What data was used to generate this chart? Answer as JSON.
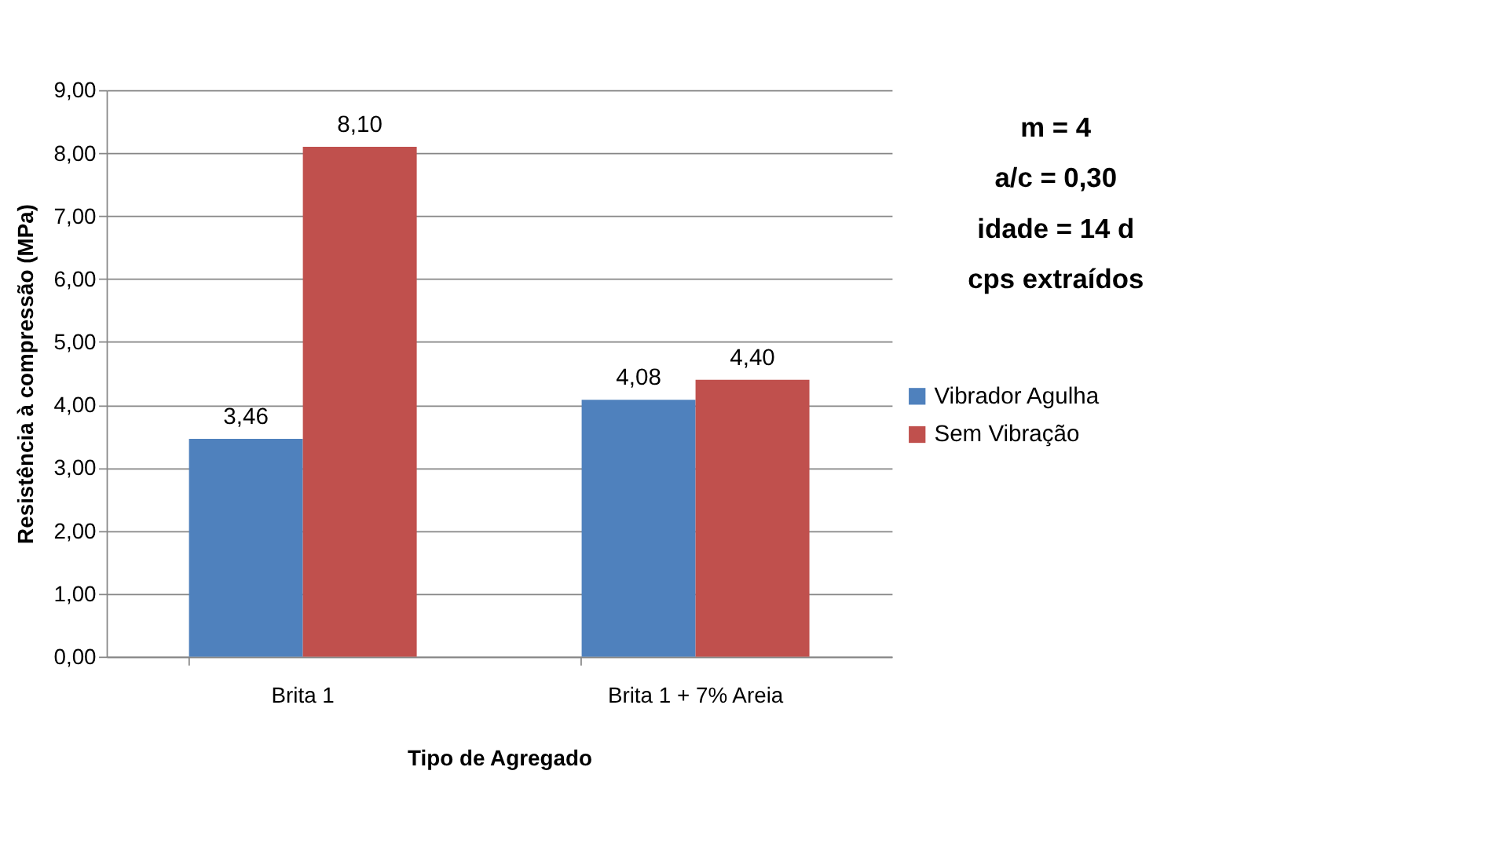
{
  "chart_data": {
    "type": "bar",
    "xlabel": "Tipo de Agregado",
    "ylabel": "Resistência à compressão (MPa)",
    "categories": [
      "Brita 1",
      "Brita 1 + 7% Areia"
    ],
    "series": [
      {
        "name": "Vibrador Agulha",
        "color": "#4f81bd",
        "values": [
          3.46,
          4.08
        ],
        "value_labels": [
          "3,46",
          "4,08"
        ]
      },
      {
        "name": "Sem Vibração",
        "color": "#c0504d",
        "values": [
          8.1,
          4.4
        ],
        "value_labels": [
          "8,10",
          "4,40"
        ]
      }
    ],
    "ylim": [
      0,
      9
    ],
    "yticks": [
      {
        "value": 0,
        "label": "0,00"
      },
      {
        "value": 1,
        "label": "1,00"
      },
      {
        "value": 2,
        "label": "2,00"
      },
      {
        "value": 3,
        "label": "3,00"
      },
      {
        "value": 4,
        "label": "4,00"
      },
      {
        "value": 5,
        "label": "5,00"
      },
      {
        "value": 6,
        "label": "6,00"
      },
      {
        "value": 7,
        "label": "7,00"
      },
      {
        "value": 8,
        "label": "8,00"
      },
      {
        "value": 9,
        "label": "9,00"
      }
    ],
    "grid": "y",
    "legend": "right",
    "annotations": [
      "m = 4",
      "a/c = 0,30",
      "idade = 14 d",
      "cps extraídos"
    ]
  }
}
